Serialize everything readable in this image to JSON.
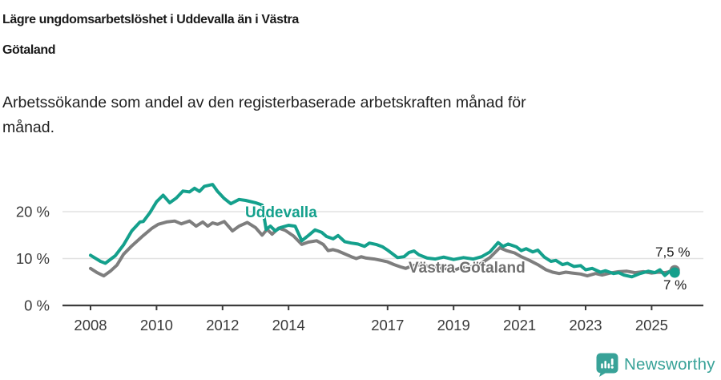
{
  "header": {
    "title_lines": [
      "Lägre ungdomsarbetslöshet i Uddevalla än i Västra",
      "Götaland"
    ],
    "subtitle_lines": [
      "Arbetssökande som andel av den registerbaserade arbetskraften månad för",
      "månad."
    ]
  },
  "chart_data": {
    "type": "line",
    "title": "Lägre ungdomsarbetslöshet i Uddevalla än i Västra Götaland",
    "subtitle": "Arbetssökande som andel av den registerbaserade arbetskraften månad för månad.",
    "xlabel": "",
    "ylabel": "",
    "xlim": [
      2007.2,
      2026.6
    ],
    "ylim": [
      0,
      27
    ],
    "grid": true,
    "x_tick_values": [
      2008,
      2010,
      2012,
      2014,
      2017,
      2019,
      2021,
      2023,
      2025
    ],
    "y_tick_values": [
      0,
      10,
      20
    ],
    "y_tick_suffix": " %",
    "colors": {
      "grid": "#e2e2e2",
      "axis": "#3c3c3c",
      "tick_text": "#3a3a3a",
      "brand_teal": "#38a298"
    },
    "series": [
      {
        "name": "Västra Götaland",
        "color": "#7e7e7e",
        "end_label": "7,5 %",
        "end_value": 7.5,
        "points": [
          [
            2008.0,
            7.9
          ],
          [
            2008.2,
            7.0
          ],
          [
            2008.4,
            6.3
          ],
          [
            2008.6,
            7.3
          ],
          [
            2008.8,
            8.6
          ],
          [
            2009.0,
            10.9
          ],
          [
            2009.25,
            12.7
          ],
          [
            2009.6,
            14.9
          ],
          [
            2009.85,
            16.4
          ],
          [
            2010.05,
            17.3
          ],
          [
            2010.3,
            17.8
          ],
          [
            2010.55,
            18.0
          ],
          [
            2010.75,
            17.4
          ],
          [
            2011.0,
            18.0
          ],
          [
            2011.2,
            16.9
          ],
          [
            2011.4,
            17.8
          ],
          [
            2011.55,
            16.9
          ],
          [
            2011.7,
            17.6
          ],
          [
            2011.85,
            17.3
          ],
          [
            2012.05,
            17.9
          ],
          [
            2012.3,
            15.9
          ],
          [
            2012.5,
            16.9
          ],
          [
            2012.75,
            17.7
          ],
          [
            2013.0,
            16.6
          ],
          [
            2013.2,
            15.0
          ],
          [
            2013.35,
            16.2
          ],
          [
            2013.5,
            15.2
          ],
          [
            2013.7,
            16.5
          ],
          [
            2013.9,
            16.0
          ],
          [
            2014.15,
            14.8
          ],
          [
            2014.4,
            13.0
          ],
          [
            2014.6,
            13.5
          ],
          [
            2014.85,
            13.8
          ],
          [
            2015.05,
            13.0
          ],
          [
            2015.2,
            11.7
          ],
          [
            2015.35,
            11.9
          ],
          [
            2015.5,
            11.6
          ],
          [
            2015.7,
            11.0
          ],
          [
            2015.9,
            10.4
          ],
          [
            2016.05,
            10.0
          ],
          [
            2016.2,
            10.4
          ],
          [
            2016.35,
            10.1
          ],
          [
            2016.6,
            9.9
          ],
          [
            2016.8,
            9.6
          ],
          [
            2017.0,
            9.3
          ],
          [
            2017.2,
            8.7
          ],
          [
            2017.4,
            8.2
          ],
          [
            2017.55,
            7.9
          ],
          [
            2017.75,
            8.5
          ],
          [
            2018.0,
            8.7
          ],
          [
            2018.25,
            8.3
          ],
          [
            2018.5,
            8.1
          ],
          [
            2018.75,
            7.9
          ],
          [
            2018.95,
            7.3
          ],
          [
            2019.2,
            8.0
          ],
          [
            2019.5,
            8.2
          ],
          [
            2019.8,
            8.8
          ],
          [
            2020.1,
            10.2
          ],
          [
            2020.4,
            12.3
          ],
          [
            2020.6,
            11.7
          ],
          [
            2020.85,
            11.2
          ],
          [
            2021.05,
            10.4
          ],
          [
            2021.3,
            9.6
          ],
          [
            2021.55,
            8.7
          ],
          [
            2021.8,
            7.6
          ],
          [
            2022.0,
            7.1
          ],
          [
            2022.2,
            6.8
          ],
          [
            2022.4,
            7.1
          ],
          [
            2022.6,
            6.9
          ],
          [
            2022.85,
            6.7
          ],
          [
            2023.05,
            6.3
          ],
          [
            2023.3,
            6.8
          ],
          [
            2023.5,
            6.5
          ],
          [
            2023.75,
            6.9
          ],
          [
            2024.0,
            7.2
          ],
          [
            2024.25,
            7.3
          ],
          [
            2024.5,
            7.0
          ],
          [
            2024.75,
            7.2
          ],
          [
            2025.0,
            6.9
          ],
          [
            2025.2,
            7.1
          ],
          [
            2025.4,
            7.0
          ],
          [
            2025.55,
            7.2
          ],
          [
            2025.7,
            7.5
          ]
        ]
      },
      {
        "name": "Uddevalla",
        "color": "#14a08c",
        "end_label": "7 %",
        "end_value": 7,
        "points": [
          [
            2008.0,
            10.7
          ],
          [
            2008.3,
            9.4
          ],
          [
            2008.45,
            9.0
          ],
          [
            2008.75,
            10.6
          ],
          [
            2009.0,
            12.9
          ],
          [
            2009.25,
            15.9
          ],
          [
            2009.5,
            17.8
          ],
          [
            2009.6,
            17.9
          ],
          [
            2009.8,
            19.8
          ],
          [
            2010.0,
            22.1
          ],
          [
            2010.2,
            23.5
          ],
          [
            2010.4,
            21.9
          ],
          [
            2010.6,
            22.9
          ],
          [
            2010.8,
            24.4
          ],
          [
            2011.0,
            24.2
          ],
          [
            2011.15,
            25.0
          ],
          [
            2011.3,
            24.3
          ],
          [
            2011.45,
            25.4
          ],
          [
            2011.7,
            25.8
          ],
          [
            2011.85,
            24.3
          ],
          [
            2012.05,
            22.8
          ],
          [
            2012.25,
            21.7
          ],
          [
            2012.5,
            22.6
          ],
          [
            2012.7,
            22.4
          ],
          [
            2013.0,
            21.9
          ],
          [
            2013.2,
            21.4
          ],
          [
            2013.32,
            16.2
          ],
          [
            2013.45,
            16.9
          ],
          [
            2013.6,
            15.9
          ],
          [
            2013.75,
            16.6
          ],
          [
            2014.0,
            17.1
          ],
          [
            2014.2,
            16.9
          ],
          [
            2014.4,
            13.8
          ],
          [
            2014.6,
            14.9
          ],
          [
            2014.8,
            16.1
          ],
          [
            2015.0,
            15.6
          ],
          [
            2015.15,
            14.7
          ],
          [
            2015.35,
            14.2
          ],
          [
            2015.5,
            14.9
          ],
          [
            2015.7,
            13.6
          ],
          [
            2015.9,
            13.3
          ],
          [
            2016.1,
            13.1
          ],
          [
            2016.3,
            12.6
          ],
          [
            2016.45,
            13.3
          ],
          [
            2016.65,
            13.0
          ],
          [
            2016.85,
            12.5
          ],
          [
            2017.0,
            11.8
          ],
          [
            2017.15,
            11.0
          ],
          [
            2017.3,
            10.2
          ],
          [
            2017.5,
            10.4
          ],
          [
            2017.65,
            11.3
          ],
          [
            2017.8,
            11.6
          ],
          [
            2017.95,
            10.8
          ],
          [
            2018.2,
            10.1
          ],
          [
            2018.45,
            9.9
          ],
          [
            2018.7,
            10.3
          ],
          [
            2019.0,
            9.8
          ],
          [
            2019.3,
            10.2
          ],
          [
            2019.6,
            9.9
          ],
          [
            2019.85,
            10.4
          ],
          [
            2020.1,
            11.4
          ],
          [
            2020.35,
            13.4
          ],
          [
            2020.5,
            12.6
          ],
          [
            2020.65,
            13.1
          ],
          [
            2020.9,
            12.5
          ],
          [
            2021.05,
            11.7
          ],
          [
            2021.2,
            12.1
          ],
          [
            2021.4,
            11.4
          ],
          [
            2021.55,
            11.8
          ],
          [
            2021.75,
            10.3
          ],
          [
            2021.95,
            9.4
          ],
          [
            2022.1,
            9.6
          ],
          [
            2022.3,
            8.7
          ],
          [
            2022.45,
            9.0
          ],
          [
            2022.65,
            8.3
          ],
          [
            2022.85,
            8.5
          ],
          [
            2023.0,
            7.6
          ],
          [
            2023.2,
            7.9
          ],
          [
            2023.45,
            7.1
          ],
          [
            2023.6,
            7.4
          ],
          [
            2023.85,
            6.8
          ],
          [
            2024.0,
            7.0
          ],
          [
            2024.15,
            6.5
          ],
          [
            2024.4,
            6.1
          ],
          [
            2024.65,
            6.8
          ],
          [
            2024.9,
            7.3
          ],
          [
            2025.1,
            7.0
          ],
          [
            2025.25,
            7.6
          ],
          [
            2025.4,
            6.4
          ],
          [
            2025.55,
            7.3
          ],
          [
            2025.7,
            7.0
          ]
        ]
      }
    ],
    "legend": {
      "position": "inline-labels",
      "entries": [
        "Uddevalla",
        "Västra Götaland"
      ]
    }
  },
  "footer": {
    "brand": "Newsworthy"
  }
}
